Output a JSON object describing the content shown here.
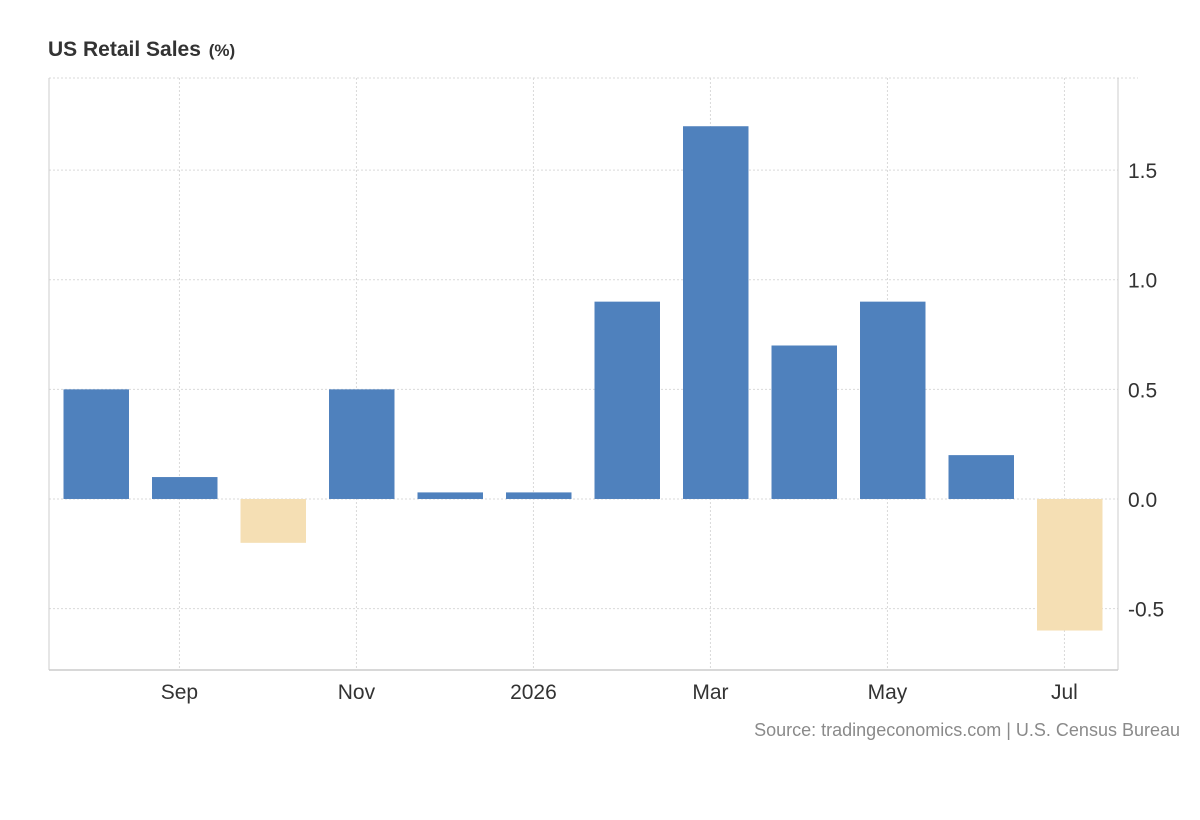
{
  "title": "US Retail Sales",
  "title_unit": "(%)",
  "source": "Source: tradingeconomics.com | U.S. Census Bureau",
  "colors": {
    "positive": "#4f81bd",
    "negative": "#f5dfb4",
    "grid": "#d9d9d9",
    "axis": "#cccccc",
    "text": "#333333"
  },
  "chart_data": {
    "type": "bar",
    "title": "US Retail Sales",
    "unit": "%",
    "categories": [
      "2025-08",
      "2025-09",
      "2025-10",
      "2025-11",
      "2025-12",
      "2026-01",
      "2026-02",
      "2026-03",
      "2026-04",
      "2026-05",
      "2026-06",
      "2026-07"
    ],
    "values": [
      0.5,
      0.1,
      -0.2,
      0.5,
      0.03,
      0.03,
      0.9,
      1.7,
      0.7,
      0.9,
      0.2,
      -0.6
    ],
    "x_tick_labels": [
      "Sep",
      "Nov",
      "2026",
      "Mar",
      "May",
      "Jul"
    ],
    "y_ticks": [
      -0.5,
      0.0,
      0.5,
      1.0,
      1.5
    ],
    "y_tick_labels": [
      "-0.5",
      "0.0",
      "0.5",
      "1.0",
      "1.5"
    ],
    "ylim": [
      -0.78,
      1.92
    ],
    "y_axis_position": "right",
    "grid": true,
    "legend": "none"
  }
}
